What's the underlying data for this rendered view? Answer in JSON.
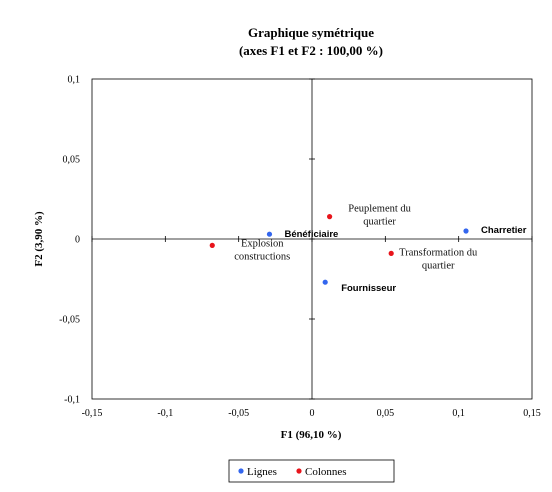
{
  "chart_data": {
    "type": "scatter",
    "title": "Graphique symétrique",
    "subtitle": "(axes F1 et F2 : 100,00 %)",
    "xlabel": "F1 (96,10 %)",
    "ylabel": "F2 (3,90 %)",
    "xlim": [
      -0.15,
      0.15
    ],
    "ylim": [
      -0.1,
      0.1
    ],
    "x_ticks": [
      {
        "value": -0.15,
        "label": "-0,15"
      },
      {
        "value": -0.1,
        "label": "-0,1"
      },
      {
        "value": -0.05,
        "label": "-0,05"
      },
      {
        "value": 0,
        "label": "0"
      },
      {
        "value": 0.05,
        "label": "0,05"
      },
      {
        "value": 0.1,
        "label": "0,1"
      },
      {
        "value": 0.15,
        "label": "0,15"
      }
    ],
    "y_ticks": [
      {
        "value": -0.1,
        "label": "-0,1"
      },
      {
        "value": -0.05,
        "label": "-0,05"
      },
      {
        "value": 0,
        "label": "0"
      },
      {
        "value": 0.05,
        "label": "0,05"
      },
      {
        "value": 0.1,
        "label": "0,1"
      }
    ],
    "grid": false,
    "legend_position": "bottom",
    "series": [
      {
        "name": "Lignes",
        "color": "#3366ee",
        "points": [
          {
            "label": "Bénéficiaire",
            "x": -0.029,
            "y": 0.003
          },
          {
            "label": "Fournisseur",
            "x": 0.009,
            "y": -0.027
          },
          {
            "label": "Charretier",
            "x": 0.105,
            "y": 0.005
          }
        ]
      },
      {
        "name": "Colonnes",
        "color": "#e8141b",
        "points": [
          {
            "label": "Explosion constructions",
            "lines": [
              "Explosion",
              "constructions"
            ],
            "x": -0.068,
            "y": -0.004
          },
          {
            "label": "Peuplement du quartier",
            "lines": [
              "Peuplement du",
              "quartier"
            ],
            "x": 0.012,
            "y": 0.014
          },
          {
            "label": "Transformation du quartier",
            "lines": [
              "Transformation du",
              "quartier"
            ],
            "x": 0.054,
            "y": -0.009
          }
        ]
      }
    ]
  }
}
